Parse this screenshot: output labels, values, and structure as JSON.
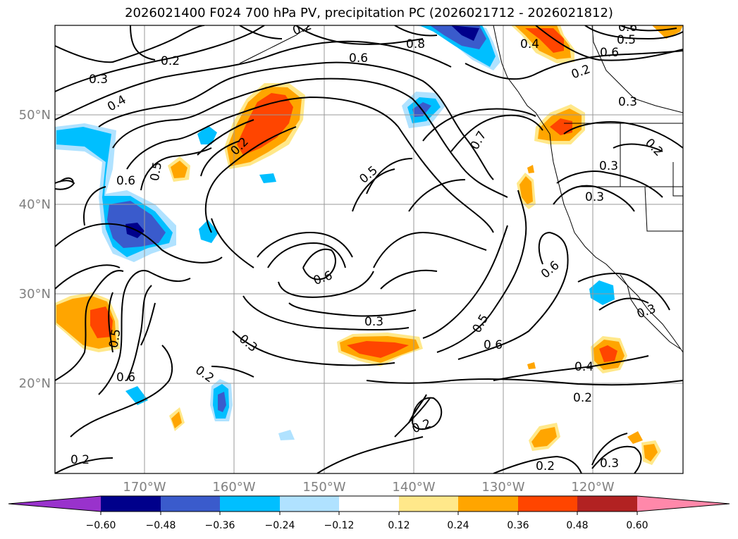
{
  "title": "2026021400 F024 700 hPa PV, precipitation PC (2026021712 - 2026021812)",
  "map": {
    "projection": "PlateCarree",
    "lon_range": [
      -180,
      -110
    ],
    "lat_range": [
      10,
      60
    ],
    "lat_ticks": [
      "50°N",
      "40°N",
      "30°N",
      "20°N"
    ],
    "lon_ticks": [
      "170°W",
      "160°W",
      "150°W",
      "140°W",
      "130°W",
      "120°W"
    ],
    "contour_labels": [
      "0.2",
      "0.3",
      "0.4",
      "0.6",
      "0.5",
      "0.6",
      "0.8",
      "0.6",
      "0.2",
      "0.5",
      "0.3",
      "0.6",
      "0.5",
      "0.3",
      "0.6",
      "0.5",
      "0.6",
      "0.6",
      "0.4",
      "0.2",
      "0.4",
      "0.5",
      "0.6",
      "0.7",
      "0.3",
      "0.3",
      "0.2",
      "0.3",
      "0.2",
      "0.2",
      "0.2",
      "0.2",
      "0.2",
      "0.3",
      "0.3",
      "0.2",
      "0.2",
      "0.2"
    ]
  },
  "colorbar": {
    "ticks": [
      "−0.60",
      "−0.48",
      "−0.36",
      "−0.24",
      "−0.12",
      "0.12",
      "0.24",
      "0.36",
      "0.48",
      "0.60"
    ],
    "colors": [
      "#9932cc",
      "#00008b",
      "#3a5bcc",
      "#00bfff",
      "#b0e2ff",
      "#ffffff",
      "#ffe88a",
      "#ffa500",
      "#ff4500",
      "#b22222",
      "#ff88aa"
    ]
  }
}
